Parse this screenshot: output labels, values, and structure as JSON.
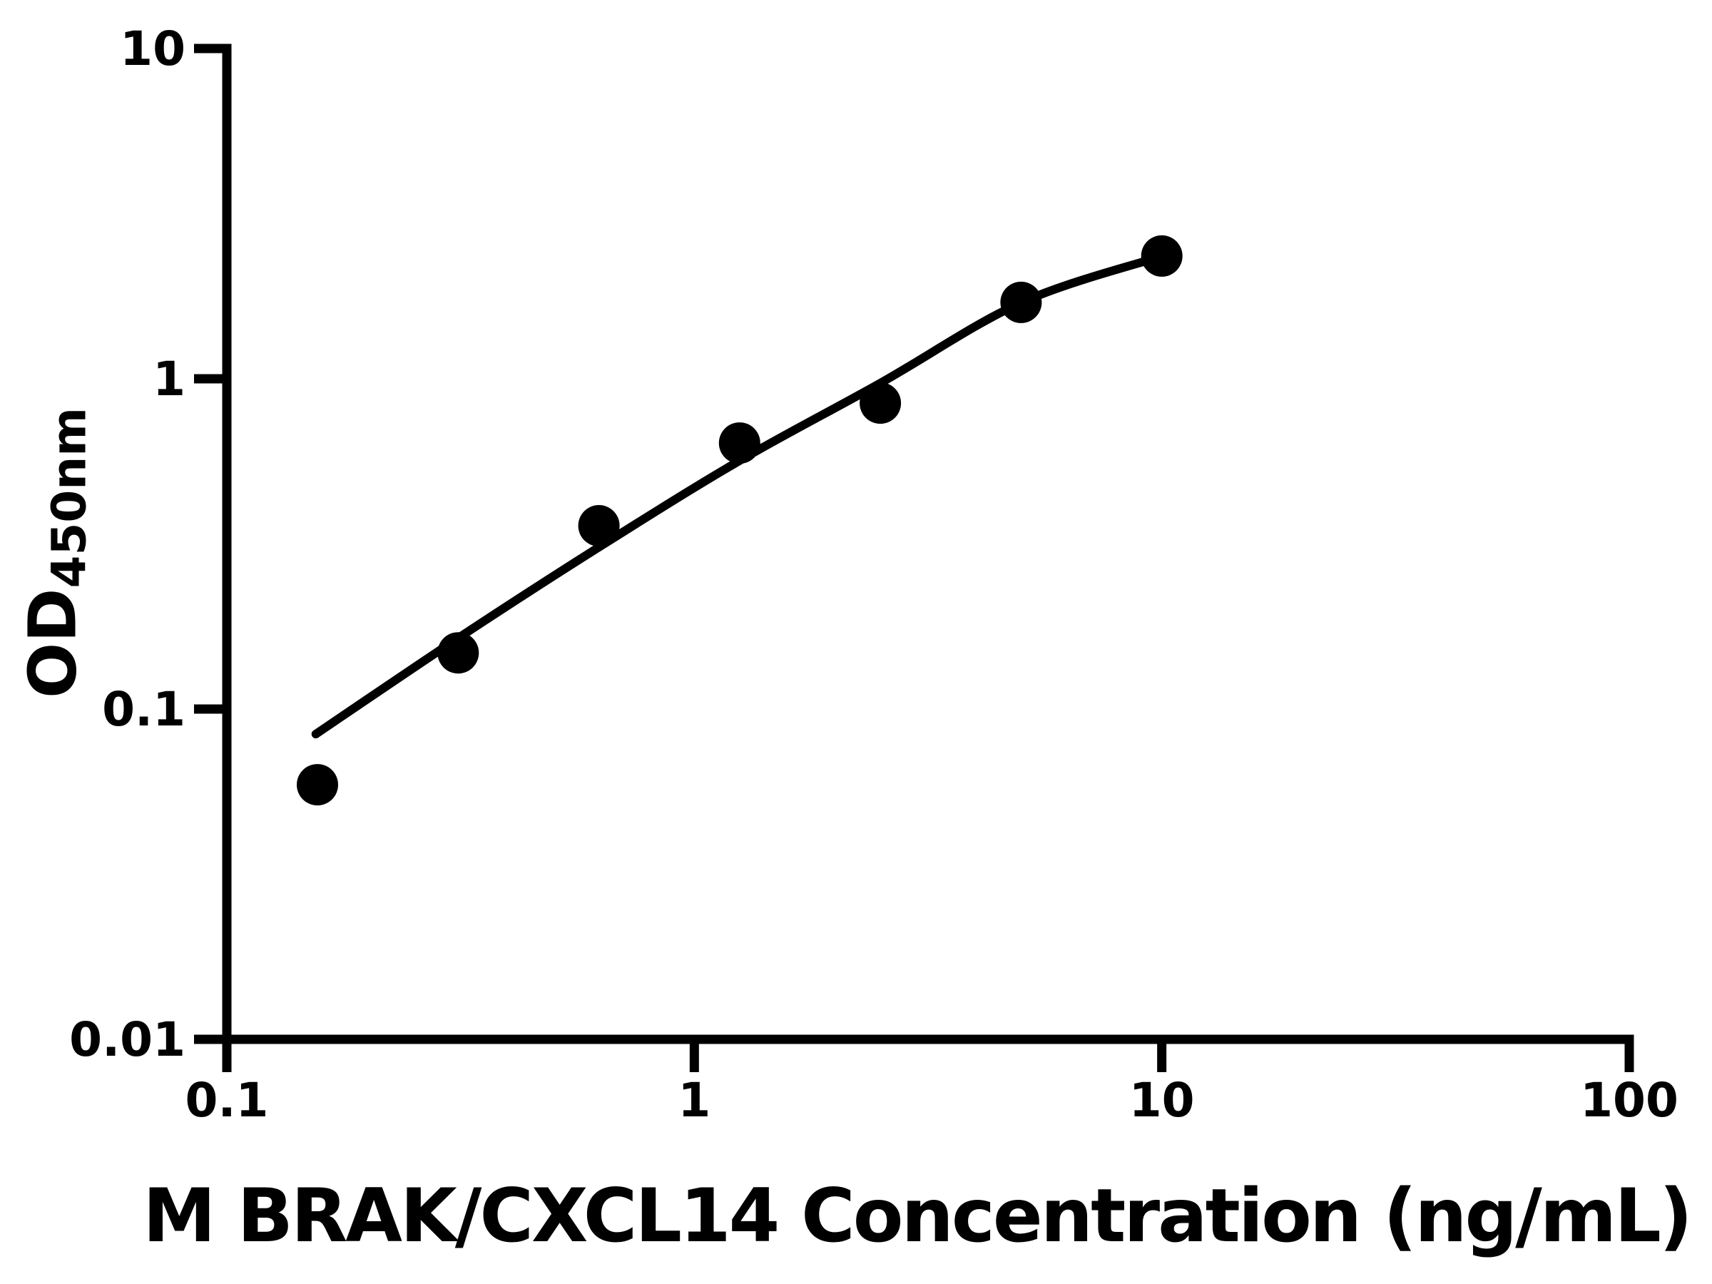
{
  "figure": {
    "background": "#ffffff",
    "ink": "#000000"
  },
  "chart_data": {
    "type": "scatter",
    "title": "",
    "xlabel": "M BRAK/CXCL14 Concentration (ng/mL)",
    "ylabel_main": "OD",
    "ylabel_sub": "450nm",
    "x_scale": "log",
    "y_scale": "log",
    "xlim": [
      0.1,
      100
    ],
    "ylim": [
      0.01,
      10
    ],
    "grid": false,
    "legend": null,
    "x_ticks": [
      {
        "v": 0.1,
        "label": "0.1"
      },
      {
        "v": 1,
        "label": "1"
      },
      {
        "v": 10,
        "label": "10"
      },
      {
        "v": 100,
        "label": "100"
      }
    ],
    "y_ticks": [
      {
        "v": 10,
        "label": "10"
      },
      {
        "v": 1,
        "label": "1"
      },
      {
        "v": 0.1,
        "label": "0.1"
      },
      {
        "v": 0.01,
        "label": "0.01"
      }
    ],
    "series": [
      {
        "name": "fit-curve",
        "type": "line",
        "color": "#000000",
        "points": [
          [
            0.155,
            0.084
          ],
          [
            0.3125,
            0.164
          ],
          [
            0.625,
            0.309
          ],
          [
            1.25,
            0.565
          ],
          [
            2.5,
            0.97
          ],
          [
            5,
            1.7
          ],
          [
            10,
            2.35
          ]
        ]
      },
      {
        "name": "standards",
        "type": "scatter",
        "marker": "circle",
        "color": "#000000",
        "points": [
          [
            0.15625,
            0.059
          ],
          [
            0.3125,
            0.148
          ],
          [
            0.625,
            0.359
          ],
          [
            1.25,
            0.639
          ],
          [
            2.5,
            0.844
          ],
          [
            5,
            1.703
          ],
          [
            10,
            2.353
          ]
        ]
      }
    ]
  }
}
